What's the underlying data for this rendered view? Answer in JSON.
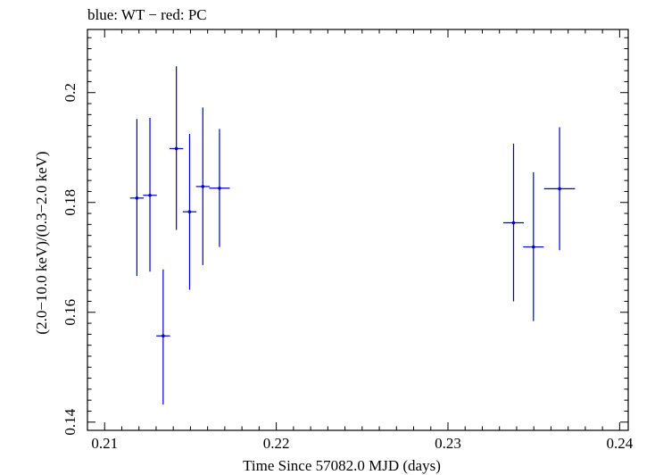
{
  "chart_data": {
    "type": "scatter",
    "title": "blue: WT − red: PC",
    "xlabel": "Time Since 57082.0 MJD (days)",
    "ylabel": "(2.0−10.0 keV)/(0.3−2.0 keV)",
    "xlim": [
      0.209,
      0.2405
    ],
    "ylim": [
      0.1385,
      0.2115
    ],
    "x_major_ticks": [
      0.21,
      0.22,
      0.23,
      0.24
    ],
    "x_tick_labels": [
      "0.21",
      "0.22",
      "0.23",
      "0.24"
    ],
    "y_major_ticks": [
      0.14,
      0.16,
      0.18,
      0.2
    ],
    "y_tick_labels": [
      "0.14",
      "0.16",
      "0.18",
      "0.2"
    ],
    "grid": false,
    "series": [
      {
        "name": "WT",
        "color": "#0000cc",
        "points": [
          {
            "x": 0.21188,
            "xerr": 0.0004,
            "y": 0.1808,
            "yerr_low": 0.0142,
            "yerr_high": 0.0144
          },
          {
            "x": 0.21264,
            "xerr": 0.0004,
            "y": 0.1813,
            "yerr_low": 0.0139,
            "yerr_high": 0.0141
          },
          {
            "x": 0.21341,
            "xerr": 0.0004,
            "y": 0.1557,
            "yerr_low": 0.0125,
            "yerr_high": 0.0121
          },
          {
            "x": 0.21418,
            "xerr": 0.0004,
            "y": 0.1898,
            "yerr_low": 0.0148,
            "yerr_high": 0.015
          },
          {
            "x": 0.21495,
            "xerr": 0.0004,
            "y": 0.1783,
            "yerr_low": 0.0142,
            "yerr_high": 0.0142
          },
          {
            "x": 0.21572,
            "xerr": 0.0004,
            "y": 0.1829,
            "yerr_low": 0.0143,
            "yerr_high": 0.0144
          },
          {
            "x": 0.21669,
            "xerr": 0.0006,
            "y": 0.1826,
            "yerr_low": 0.0107,
            "yerr_high": 0.0108
          },
          {
            "x": 0.23382,
            "xerr": 0.0006,
            "y": 0.1763,
            "yerr_low": 0.0143,
            "yerr_high": 0.0144
          },
          {
            "x": 0.23498,
            "xerr": 0.0006,
            "y": 0.1719,
            "yerr_low": 0.0135,
            "yerr_high": 0.0136
          },
          {
            "x": 0.2365,
            "xerr": 0.0009,
            "y": 0.1825,
            "yerr_low": 0.0112,
            "yerr_high": 0.0112
          }
        ]
      }
    ]
  }
}
